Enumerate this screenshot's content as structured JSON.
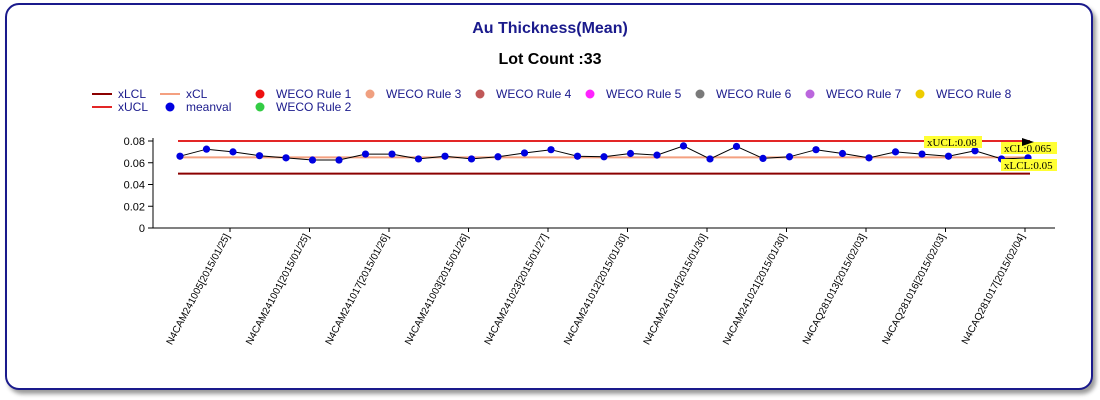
{
  "chart_data": {
    "type": "line",
    "title": "Au Thickness(Mean)",
    "subtitle": "Lot Count :33",
    "ylim": [
      0,
      0.08
    ],
    "yticks": [
      "0",
      "0.02",
      "0.04",
      "0.06",
      "0.08"
    ],
    "legend_position": "top",
    "legend": [
      {
        "label": "xLCL",
        "kind": "line",
        "color": "#8b0000"
      },
      {
        "label": "xUCL",
        "kind": "line",
        "color": "#e32626"
      },
      {
        "label": "xCL",
        "kind": "line",
        "color": "#f4a080"
      },
      {
        "label": "meanval",
        "kind": "dot",
        "color": "#0000e0"
      },
      {
        "label": "WECO Rule 1",
        "kind": "dot",
        "color": "#ee1111"
      },
      {
        "label": "WECO Rule 2",
        "kind": "dot",
        "color": "#33cc44"
      },
      {
        "label": "WECO Rule 3",
        "kind": "dot",
        "color": "#f0a080"
      },
      {
        "label": "WECO Rule 4",
        "kind": "dot",
        "color": "#c05858"
      },
      {
        "label": "WECO Rule 5",
        "kind": "dot",
        "color": "#ff22ff"
      },
      {
        "label": "WECO Rule 6",
        "kind": "dot",
        "color": "#7a7a7a"
      },
      {
        "label": "WECO Rule 7",
        "kind": "dot",
        "color": "#bb66dd"
      },
      {
        "label": "WECO Rule 8",
        "kind": "dot",
        "color": "#eecc00"
      }
    ],
    "control_limits": {
      "xUCL": 0.08,
      "xCL": 0.065,
      "xLCL": 0.05,
      "xUCL_label": "xUCL:0.08",
      "xCL_label": "xCL:0.065",
      "xLCL_label": "xLCL:0.05"
    },
    "x_tick_labels": [
      "N4CAM241005[2015/01/25]",
      "N4CAM241001[2015/01/25]",
      "N4CAM241017[2015/01/26]",
      "N4CAM241003[2015/01/26]",
      "N4CAM241023[2015/01/27]",
      "N4CAM241012[2015/01/30]",
      "N4CAM241014[2015/01/30]",
      "N4CAM241021[2015/01/30]",
      "N4CAQ281013[2015/02/03]",
      "N4CAQ281016[2015/02/03]",
      "N4CAQ281017[2015/02/04]"
    ],
    "series": [
      {
        "name": "meanval",
        "color": "#0000e0",
        "values": [
          0.066,
          0.0725,
          0.07,
          0.0665,
          0.0645,
          0.0625,
          0.0625,
          0.068,
          0.068,
          0.0635,
          0.066,
          0.0635,
          0.0655,
          0.069,
          0.072,
          0.066,
          0.0655,
          0.0685,
          0.067,
          0.0755,
          0.0635,
          0.075,
          0.064,
          0.0655,
          0.072,
          0.0685,
          0.0645,
          0.07,
          0.068,
          0.066,
          0.071,
          0.0635,
          0.0645
        ]
      }
    ]
  }
}
